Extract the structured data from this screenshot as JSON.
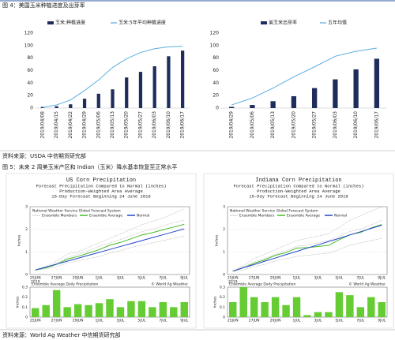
{
  "figure4_title": "图 4：美国玉米种植进度及出芽率",
  "source1": "资料来源：USDA  中信期货研究部",
  "figure5_title": "图 5：未来 2 周美玉米产区和 Indian（玉米）降水基本恢复至正常水平",
  "source2": "资料来源：World Ag Weather  中信期货研究部",
  "chart_data": [
    {
      "type": "combo",
      "categories": [
        "2019/04/08",
        "2019/04/15",
        "2019/04/22",
        "2019/04/29",
        "2019/05/06",
        "2019/05/13",
        "2019/05/20",
        "2019/05/27",
        "2019/06/03",
        "2019/06/10",
        "2019/06/17"
      ],
      "ylim": [
        0,
        120
      ],
      "yticks": [
        0,
        20,
        40,
        60,
        80,
        100,
        120
      ],
      "series": [
        {
          "name": "玉米:种植进度",
          "kind": "bar",
          "color": "#1f2d5c",
          "values": [
            2,
            3,
            6,
            15,
            23,
            30,
            49,
            58,
            67,
            83,
            92
          ]
        },
        {
          "name": "玉米:5年平均种植进度",
          "kind": "line",
          "color": "#5aaee0",
          "values": [
            1,
            5,
            13,
            28,
            45,
            65,
            79,
            89,
            95,
            98,
            99
          ]
        }
      ]
    },
    {
      "type": "combo",
      "categories": [
        "2019/04/29",
        "2019/05/06",
        "2019/05/13",
        "2019/05/20",
        "2019/05/27",
        "2019/06/03",
        "2019/06/10",
        "2019/06/17"
      ],
      "ylim": [
        0,
        120
      ],
      "yticks": [
        0,
        20,
        40,
        60,
        80,
        100,
        120
      ],
      "series": [
        {
          "name": "美玉米出芽率",
          "kind": "bar",
          "color": "#1f2d5c",
          "values": [
            2,
            5,
            11,
            19,
            32,
            46,
            62,
            79
          ]
        },
        {
          "name": "五年均值",
          "kind": "line",
          "color": "#5aaee0",
          "values": [
            5,
            16,
            32,
            50,
            66,
            83,
            91,
            96
          ]
        }
      ]
    },
    {
      "type": "line",
      "title": "US Corn Precipitation",
      "subtitle": [
        "Forecast Precipitation Compared to Normal (inches)",
        "Production-Weighted Area Average",
        "15-Day Forecast Beginning 24 June 2019"
      ],
      "inner_title": "National Weather Service Global Forecast System",
      "ylabel": "Inches",
      "year": "2019",
      "categories": [
        "25JUN",
        null,
        "27JUN",
        null,
        "29JUN",
        null,
        "1JUL",
        null,
        "3JUL",
        null,
        "5JUL",
        null,
        "7JUL",
        null,
        "9JUL"
      ],
      "ylim": [
        0,
        3
      ],
      "yticks": [
        0,
        1,
        2,
        3
      ],
      "grid": true,
      "series": [
        {
          "name": "Ensemble Members",
          "color": "#aaaaaa",
          "values": [
            0.2,
            0.35,
            0.6,
            0.9,
            1.0,
            1.2,
            1.4,
            1.6,
            1.8,
            2.0,
            2.2,
            2.35,
            2.5,
            2.7,
            2.9
          ]
        },
        {
          "color": "#aaaaaa",
          "values": [
            0.2,
            0.25,
            0.35,
            0.5,
            0.6,
            0.7,
            0.8,
            0.95,
            1.05,
            1.2,
            1.3,
            1.4,
            1.5,
            1.6,
            1.7
          ]
        },
        {
          "color": "#aaaaaa",
          "values": [
            0.2,
            0.3,
            0.5,
            0.75,
            0.9,
            1.05,
            1.25,
            1.4,
            1.55,
            1.7,
            1.9,
            2.0,
            2.15,
            2.3,
            2.4
          ]
        },
        {
          "name": "Ensemble Average",
          "color": "#44bb22",
          "values": [
            0.2,
            0.3,
            0.45,
            0.68,
            0.8,
            0.95,
            1.1,
            1.3,
            1.42,
            1.58,
            1.75,
            1.85,
            1.98,
            2.1,
            2.22
          ]
        },
        {
          "name": "Normal",
          "color": "#2244cc",
          "values": [
            0.2,
            0.33,
            0.46,
            0.59,
            0.72,
            0.85,
            0.98,
            1.11,
            1.24,
            1.37,
            1.5,
            1.63,
            1.76,
            1.89,
            2.02
          ]
        }
      ]
    },
    {
      "type": "bar",
      "title": "Ensemble Average Daily Precipitation",
      "credit": "© World Ag Weather",
      "ylabel": "Inches",
      "categories": [
        "25JUN",
        null,
        "27JUN",
        null,
        "29JUN",
        null,
        "1JUL",
        null,
        "3JUL",
        null,
        "5JUL",
        null,
        "7JUL",
        null,
        "9JUL"
      ],
      "ylim": [
        0,
        0.3
      ],
      "yticks": [
        0,
        0.1,
        0.2,
        0.3
      ],
      "color": "#66cc33",
      "values": [
        0.09,
        0.12,
        0.27,
        0.1,
        0.13,
        0.12,
        0.14,
        0.18,
        0.1,
        0.16,
        0.16,
        0.1,
        0.15,
        0.1,
        0.15
      ]
    },
    {
      "type": "line",
      "title": "Indiana Corn Precipitation",
      "subtitle": [
        "Forecast Precipitation Compared to Normal (inches)",
        "Production-Weighted Area Average",
        "15-Day Forecast Beginning 24 June 2019"
      ],
      "inner_title": "National Weather Service Global Forecast System",
      "ylabel": "Inches",
      "year": "2019",
      "categories": [
        "25JUN",
        null,
        "27JUN",
        null,
        "29JUN",
        null,
        "1JUL",
        null,
        "3JUL",
        null,
        "5JUL",
        null,
        "7JUL",
        null,
        "9JUL"
      ],
      "ylim": [
        0,
        3
      ],
      "yticks": [
        0,
        1,
        2,
        3
      ],
      "grid": true,
      "series": [
        {
          "name": "Ensemble Members",
          "color": "#aaaaaa",
          "values": [
            0.15,
            0.4,
            0.7,
            0.9,
            1.1,
            1.3,
            1.5,
            1.6,
            1.7,
            1.8,
            2.1,
            2.4,
            2.6,
            2.8,
            3.0
          ]
        },
        {
          "color": "#aaaaaa",
          "values": [
            0.15,
            0.2,
            0.35,
            0.45,
            0.6,
            0.7,
            0.8,
            0.85,
            0.9,
            0.95,
            1.1,
            1.3,
            1.4,
            1.5,
            1.6
          ]
        },
        {
          "color": "#aaaaaa",
          "values": [
            0.15,
            0.35,
            0.55,
            0.7,
            0.9,
            1.05,
            1.25,
            1.3,
            1.4,
            1.5,
            1.7,
            1.9,
            2.0,
            2.2,
            2.4
          ]
        },
        {
          "name": "Ensemble Average",
          "color": "#44bb22",
          "values": [
            0.15,
            0.3,
            0.5,
            0.65,
            0.85,
            0.97,
            1.17,
            1.19,
            1.24,
            1.29,
            1.54,
            1.76,
            1.86,
            2.06,
            2.21
          ]
        },
        {
          "name": "Normal",
          "color": "#2244cc",
          "values": [
            0.15,
            0.3,
            0.44,
            0.59,
            0.73,
            0.88,
            1.02,
            1.17,
            1.31,
            1.46,
            1.6,
            1.75,
            1.89,
            2.04,
            2.18
          ]
        }
      ]
    },
    {
      "type": "bar",
      "title": "Ensemble Average Daily Precipitation",
      "credit": "© World Ag Weather",
      "ylabel": "Inches",
      "categories": [
        "25JUN",
        null,
        "27JUN",
        null,
        "29JUN",
        null,
        "1JUL",
        null,
        "3JUL",
        null,
        "5JUL",
        null,
        "7JUL",
        null,
        "9JUL"
      ],
      "ylim": [
        0,
        0.3
      ],
      "yticks": [
        0,
        0.1,
        0.2,
        0.3
      ],
      "color": "#66cc33",
      "values": [
        0.15,
        0.3,
        0.2,
        0.15,
        0.2,
        0.12,
        0.2,
        0.02,
        0.05,
        0.05,
        0.25,
        0.22,
        0.1,
        0.2,
        0.15
      ]
    }
  ]
}
